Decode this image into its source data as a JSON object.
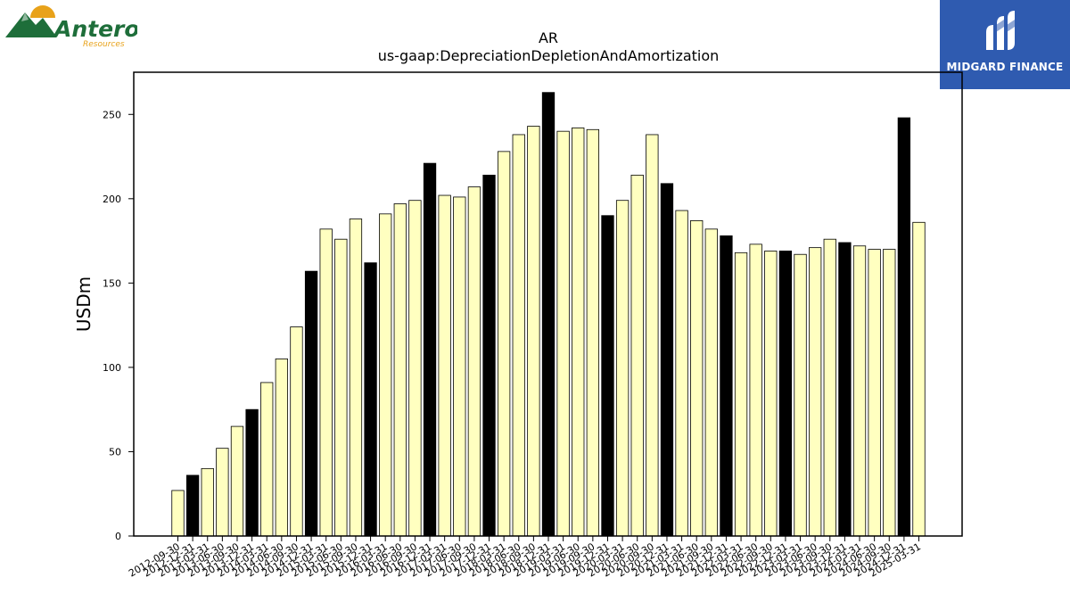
{
  "logos": {
    "left": {
      "name": "Antero",
      "subtitle": "Resources",
      "colors": {
        "mountain": "#1e6e3a",
        "sun": "#e8a21a",
        "text": "#1e6e3a",
        "subtext": "#e8a21a"
      }
    },
    "right": {
      "name": "MIDGARD FINANCE",
      "colors": {
        "background": "#2f5bb0",
        "text": "#ffffff"
      }
    }
  },
  "chart_data": {
    "type": "bar",
    "title": "AR",
    "subtitle": "us-gaap:DepreciationDepletionAndAmortization",
    "xlabel": "",
    "ylabel": "USDm",
    "ylim": [
      0,
      275
    ],
    "yticks": [
      0,
      50,
      100,
      150,
      200,
      250
    ],
    "grid": false,
    "colors": {
      "quarter": "#ffffc0",
      "annual": "#000000",
      "edge": "#000000"
    },
    "categories": [
      "2012-09-30",
      "2012-12-31",
      "2013-03-31",
      "2013-06-30",
      "2013-09-30",
      "2013-12-31",
      "2014-03-31",
      "2014-06-30",
      "2014-09-30",
      "2014-12-31",
      "2015-03-31",
      "2015-06-30",
      "2015-09-30",
      "2015-12-31",
      "2016-03-31",
      "2016-06-30",
      "2016-09-30",
      "2016-12-31",
      "2017-03-31",
      "2017-06-30",
      "2017-09-30",
      "2017-12-31",
      "2018-03-31",
      "2018-06-30",
      "2018-09-30",
      "2018-12-31",
      "2019-03-31",
      "2019-06-30",
      "2019-09-30",
      "2019-12-31",
      "2020-03-31",
      "2020-06-30",
      "2020-09-30",
      "2020-12-31",
      "2021-03-31",
      "2021-06-30",
      "2021-09-30",
      "2021-12-31",
      "2022-03-31",
      "2022-06-30",
      "2022-09-30",
      "2022-12-31",
      "2023-03-31",
      "2023-06-30",
      "2023-09-30",
      "2023-12-31",
      "2024-03-31",
      "2024-06-30",
      "2024-09-30",
      "2024-12-31",
      "2025-03-31"
    ],
    "values": [
      27,
      36,
      40,
      52,
      65,
      75,
      91,
      105,
      124,
      157,
      182,
      176,
      188,
      162,
      191,
      197,
      199,
      221,
      202,
      201,
      207,
      214,
      228,
      238,
      243,
      263,
      240,
      242,
      241,
      190,
      199,
      214,
      238,
      209,
      193,
      187,
      182,
      178,
      168,
      173,
      169,
      169,
      167,
      171,
      176,
      174,
      172,
      170,
      170,
      248,
      186
    ],
    "annual_flags": [
      false,
      true,
      false,
      false,
      false,
      true,
      false,
      false,
      false,
      true,
      false,
      false,
      false,
      true,
      false,
      false,
      false,
      true,
      false,
      false,
      false,
      true,
      false,
      false,
      false,
      true,
      false,
      false,
      false,
      true,
      false,
      false,
      false,
      true,
      false,
      false,
      false,
      true,
      false,
      false,
      false,
      true,
      false,
      false,
      false,
      true,
      false,
      false,
      false,
      true,
      false
    ]
  }
}
